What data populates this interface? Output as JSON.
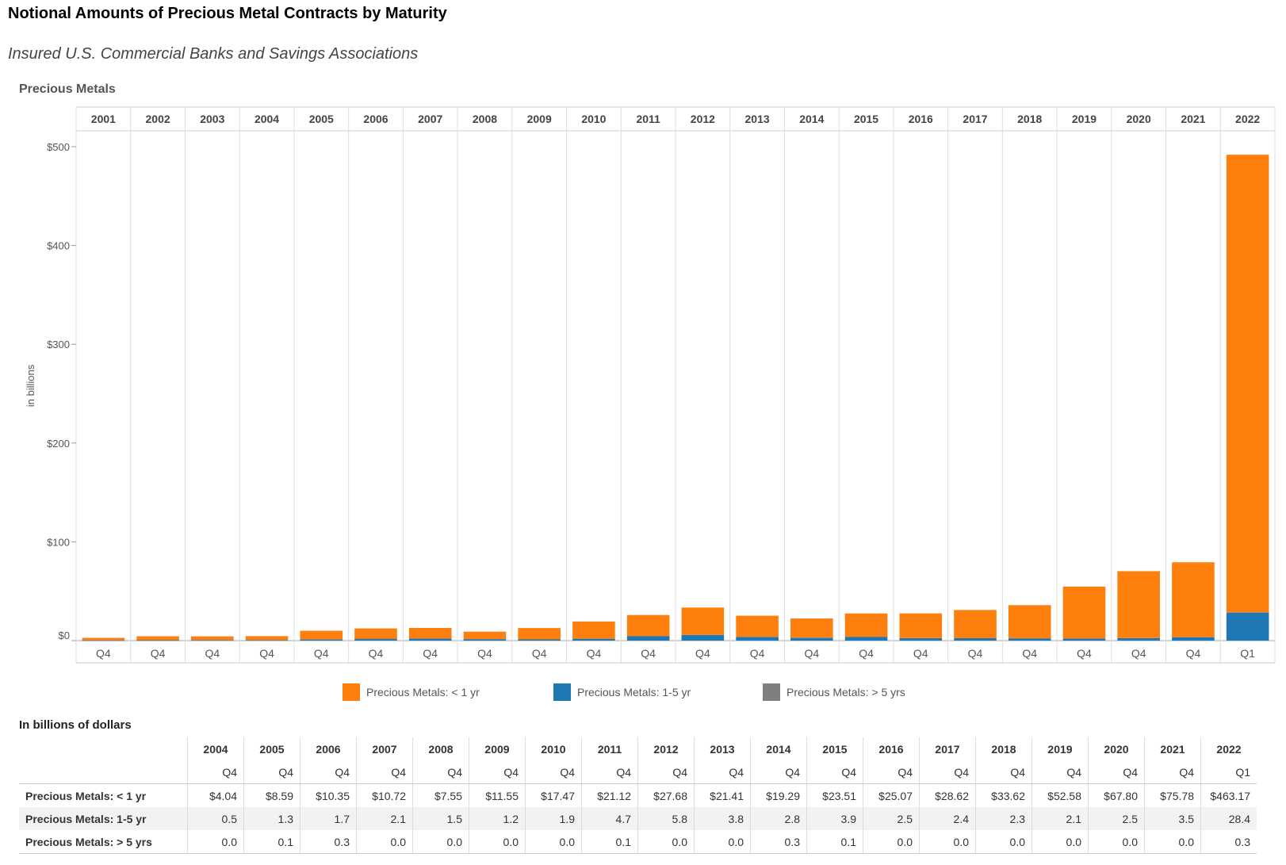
{
  "header": {
    "title": "Notional Amounts of Precious Metal Contracts by Maturity",
    "subtitle": "Insured U.S. Commercial Banks and Savings Associations",
    "section_label": "Precious Metals"
  },
  "colors": {
    "lt1": "#ff7f0e",
    "y1_5": "#1f77b4",
    "gt5": "#7f7f7f"
  },
  "chart_data": {
    "type": "bar",
    "stacked": true,
    "ylabel": "in billions",
    "ylim": [
      0,
      500
    ],
    "yticks": [
      "$0",
      "$100",
      "$200",
      "$300",
      "$400",
      "$500"
    ],
    "ytick_values": [
      0,
      100,
      200,
      300,
      400,
      500
    ],
    "years": [
      "2001",
      "2002",
      "2003",
      "2004",
      "2005",
      "2006",
      "2007",
      "2008",
      "2009",
      "2010",
      "2011",
      "2012",
      "2013",
      "2014",
      "2015",
      "2016",
      "2017",
      "2018",
      "2019",
      "2020",
      "2021",
      "2022"
    ],
    "quarters": [
      "Q4",
      "Q4",
      "Q4",
      "Q4",
      "Q4",
      "Q4",
      "Q4",
      "Q4",
      "Q4",
      "Q4",
      "Q4",
      "Q4",
      "Q4",
      "Q4",
      "Q4",
      "Q4",
      "Q4",
      "Q4",
      "Q4",
      "Q4",
      "Q4",
      "Q1"
    ],
    "series": [
      {
        "name": "Precious Metals: < 1 yr",
        "values": [
          2.5,
          4.0,
          3.8,
          4.04,
          8.59,
          10.35,
          10.72,
          7.55,
          11.55,
          17.47,
          21.12,
          27.68,
          21.41,
          19.29,
          23.51,
          25.07,
          28.62,
          33.62,
          52.58,
          67.8,
          75.78,
          463.17
        ]
      },
      {
        "name": "Precious Metals: 1-5 yr",
        "values": [
          0.3,
          0.4,
          0.5,
          0.5,
          1.3,
          1.7,
          2.1,
          1.5,
          1.2,
          1.9,
          4.7,
          5.8,
          3.8,
          2.8,
          3.9,
          2.5,
          2.4,
          2.3,
          2.1,
          2.5,
          3.5,
          28.4
        ]
      },
      {
        "name": "Precious Metals: > 5 yrs",
        "values": [
          0.0,
          0.0,
          0.0,
          0.0,
          0.1,
          0.3,
          0.0,
          0.0,
          0.0,
          0.0,
          0.1,
          0.0,
          0.0,
          0.3,
          0.1,
          0.0,
          0.0,
          0.0,
          0.0,
          0.0,
          0.0,
          0.3
        ]
      }
    ],
    "legend": [
      "Precious Metals: < 1 yr",
      "Precious Metals: 1-5 yr",
      "Precious Metals: > 5 yrs"
    ],
    "legend_position": "bottom",
    "grid": false
  },
  "table": {
    "title": "In billions of dollars",
    "years": [
      "2004",
      "2005",
      "2006",
      "2007",
      "2008",
      "2009",
      "2010",
      "2011",
      "2012",
      "2013",
      "2014",
      "2015",
      "2016",
      "2017",
      "2018",
      "2019",
      "2020",
      "2021",
      "2022"
    ],
    "quarters": [
      "Q4",
      "Q4",
      "Q4",
      "Q4",
      "Q4",
      "Q4",
      "Q4",
      "Q4",
      "Q4",
      "Q4",
      "Q4",
      "Q4",
      "Q4",
      "Q4",
      "Q4",
      "Q4",
      "Q4",
      "Q4",
      "Q1"
    ],
    "rows": [
      {
        "label": "Precious Metals: < 1 yr",
        "values": [
          "$4.04",
          "$8.59",
          "$10.35",
          "$10.72",
          "$7.55",
          "$11.55",
          "$17.47",
          "$21.12",
          "$27.68",
          "$21.41",
          "$19.29",
          "$23.51",
          "$25.07",
          "$28.62",
          "$33.62",
          "$52.58",
          "$67.80",
          "$75.78",
          "$463.17"
        ]
      },
      {
        "label": "Precious Metals: 1-5 yr",
        "values": [
          "0.5",
          "1.3",
          "1.7",
          "2.1",
          "1.5",
          "1.2",
          "1.9",
          "4.7",
          "5.8",
          "3.8",
          "2.8",
          "3.9",
          "2.5",
          "2.4",
          "2.3",
          "2.1",
          "2.5",
          "3.5",
          "28.4"
        ]
      },
      {
        "label": "Precious Metals: > 5 yrs",
        "values": [
          "0.0",
          "0.1",
          "0.3",
          "0.0",
          "0.0",
          "0.0",
          "0.0",
          "0.1",
          "0.0",
          "0.0",
          "0.3",
          "0.1",
          "0.0",
          "0.0",
          "0.0",
          "0.0",
          "0.0",
          "0.0",
          "0.3"
        ]
      }
    ]
  }
}
